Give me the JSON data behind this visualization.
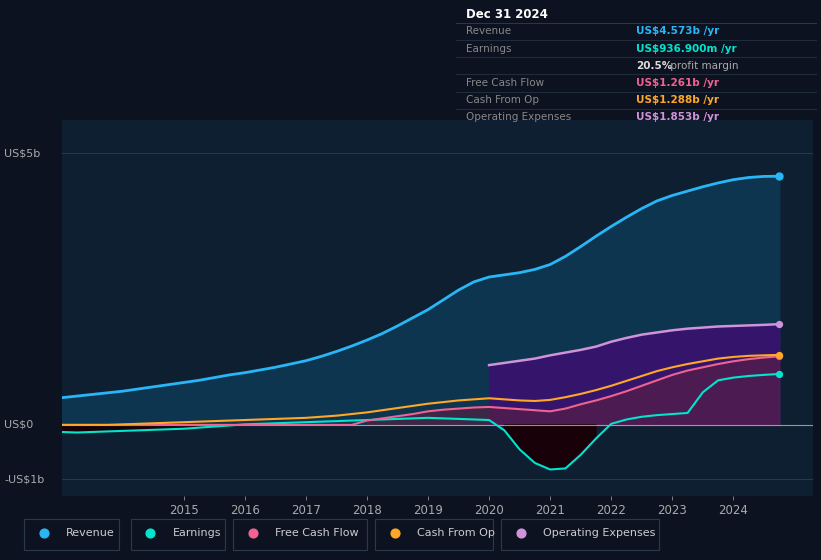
{
  "bg_color": "#0c1220",
  "plot_bg_color": "#0d1f30",
  "years": [
    2013.0,
    2013.25,
    2013.5,
    2013.75,
    2014.0,
    2014.25,
    2014.5,
    2014.75,
    2015.0,
    2015.25,
    2015.5,
    2015.75,
    2016.0,
    2016.25,
    2016.5,
    2016.75,
    2017.0,
    2017.25,
    2017.5,
    2017.75,
    2018.0,
    2018.25,
    2018.5,
    2018.75,
    2019.0,
    2019.25,
    2019.5,
    2019.75,
    2020.0,
    2020.25,
    2020.5,
    2020.75,
    2021.0,
    2021.25,
    2021.5,
    2021.75,
    2022.0,
    2022.25,
    2022.5,
    2022.75,
    2023.0,
    2023.25,
    2023.5,
    2023.75,
    2024.0,
    2024.25,
    2024.5,
    2024.75
  ],
  "revenue": [
    0.5,
    0.53,
    0.56,
    0.59,
    0.62,
    0.66,
    0.7,
    0.74,
    0.78,
    0.82,
    0.87,
    0.92,
    0.96,
    1.01,
    1.06,
    1.12,
    1.18,
    1.26,
    1.35,
    1.45,
    1.56,
    1.68,
    1.82,
    1.97,
    2.12,
    2.3,
    2.48,
    2.63,
    2.72,
    2.76,
    2.8,
    2.86,
    2.95,
    3.1,
    3.28,
    3.47,
    3.65,
    3.82,
    3.98,
    4.12,
    4.22,
    4.3,
    4.38,
    4.45,
    4.51,
    4.55,
    4.57,
    4.573
  ],
  "earnings": [
    -0.13,
    -0.14,
    -0.13,
    -0.12,
    -0.11,
    -0.1,
    -0.09,
    -0.08,
    -0.07,
    -0.05,
    -0.03,
    -0.01,
    0.01,
    0.02,
    0.03,
    0.04,
    0.05,
    0.06,
    0.07,
    0.08,
    0.09,
    0.1,
    0.11,
    0.12,
    0.13,
    0.12,
    0.11,
    0.1,
    0.09,
    -0.1,
    -0.45,
    -0.7,
    -0.82,
    -0.8,
    -0.55,
    -0.25,
    0.02,
    0.1,
    0.15,
    0.18,
    0.2,
    0.22,
    0.6,
    0.82,
    0.87,
    0.9,
    0.92,
    0.937
  ],
  "free_cash_flow": [
    0.0,
    0.0,
    0.0,
    0.0,
    0.0,
    0.0,
    0.0,
    0.0,
    0.0,
    0.0,
    0.0,
    0.0,
    0.0,
    0.0,
    0.0,
    0.0,
    0.0,
    0.0,
    0.0,
    0.0,
    0.08,
    0.12,
    0.16,
    0.2,
    0.25,
    0.28,
    0.3,
    0.32,
    0.33,
    0.31,
    0.29,
    0.27,
    0.25,
    0.3,
    0.38,
    0.45,
    0.53,
    0.62,
    0.72,
    0.82,
    0.92,
    1.0,
    1.06,
    1.12,
    1.17,
    1.21,
    1.24,
    1.261
  ],
  "cash_from_op": [
    0.0,
    0.0,
    0.0,
    0.0,
    0.01,
    0.02,
    0.03,
    0.04,
    0.05,
    0.06,
    0.07,
    0.08,
    0.09,
    0.1,
    0.11,
    0.12,
    0.13,
    0.15,
    0.17,
    0.2,
    0.23,
    0.27,
    0.31,
    0.35,
    0.39,
    0.42,
    0.45,
    0.47,
    0.49,
    0.47,
    0.45,
    0.44,
    0.46,
    0.51,
    0.57,
    0.64,
    0.72,
    0.81,
    0.9,
    0.99,
    1.06,
    1.12,
    1.17,
    1.22,
    1.25,
    1.27,
    1.28,
    1.288
  ],
  "op_expenses": [
    0.0,
    0.0,
    0.0,
    0.0,
    0.0,
    0.0,
    0.0,
    0.0,
    0.0,
    0.0,
    0.0,
    0.0,
    0.0,
    0.0,
    0.0,
    0.0,
    0.0,
    0.0,
    0.0,
    0.0,
    0.0,
    0.0,
    0.0,
    0.0,
    0.0,
    0.0,
    0.0,
    0.0,
    1.1,
    1.14,
    1.18,
    1.22,
    1.28,
    1.33,
    1.38,
    1.44,
    1.53,
    1.6,
    1.66,
    1.7,
    1.74,
    1.77,
    1.79,
    1.81,
    1.82,
    1.83,
    1.84,
    1.853
  ],
  "revenue_color": "#29b6f6",
  "earnings_color": "#00e5cc",
  "fcf_color": "#f06292",
  "cashop_color": "#ffa726",
  "opex_color": "#ce93d8",
  "revenue_fill": "#0d3550",
  "opex_fill_color": "#3d1070",
  "fcf_fill_color": "#5c2040",
  "ylabel_us5b": "US$5b",
  "ylabel_us0": "US$0",
  "ylabel_usn1b": "-US$1b",
  "info_box": {
    "title": "Dec 31 2024",
    "rows": [
      {
        "label": "Revenue",
        "value": "US$4.573b /yr",
        "value_color": "#29b6f6"
      },
      {
        "label": "Earnings",
        "value": "US$936.900m /yr",
        "value_color": "#00e5cc"
      },
      {
        "label": "",
        "value": "20.5% profit margin",
        "value_color": "#ffffff",
        "bold_part": "20.5%"
      },
      {
        "label": "Free Cash Flow",
        "value": "US$1.261b /yr",
        "value_color": "#f06292"
      },
      {
        "label": "Cash From Op",
        "value": "US$1.288b /yr",
        "value_color": "#ffa726"
      },
      {
        "label": "Operating Expenses",
        "value": "US$1.853b /yr",
        "value_color": "#ce93d8"
      }
    ]
  },
  "legend": [
    {
      "label": "Revenue",
      "color": "#29b6f6"
    },
    {
      "label": "Earnings",
      "color": "#00e5cc"
    },
    {
      "label": "Free Cash Flow",
      "color": "#f06292"
    },
    {
      "label": "Cash From Op",
      "color": "#ffa726"
    },
    {
      "label": "Operating Expenses",
      "color": "#ce93d8"
    }
  ],
  "xlim": [
    2013.0,
    2025.3
  ],
  "ylim": [
    -1.3,
    5.6
  ],
  "xticks": [
    2015,
    2016,
    2017,
    2018,
    2019,
    2020,
    2021,
    2022,
    2023,
    2024
  ],
  "hline_y5": 5.0,
  "hline_y0": 0.0,
  "hline_yn1": -1.0
}
